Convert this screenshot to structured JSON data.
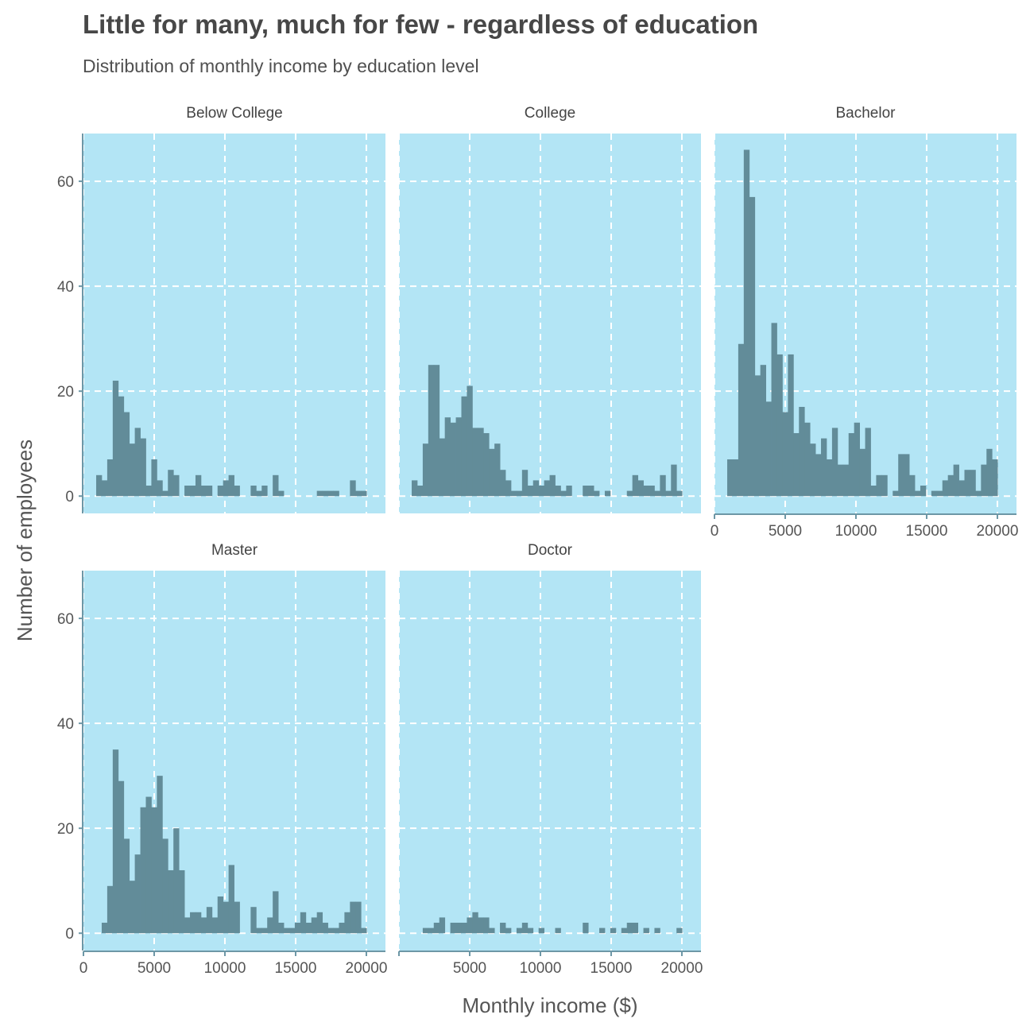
{
  "title": "Little for many, much for few - regardless of education",
  "subtitle": "Distribution of monthly income by education level",
  "colors": {
    "panel_bg": "#b3e5f5",
    "bar": "#628c99",
    "grid": "#ffffff",
    "axis": "#6d97a6"
  },
  "chart_data": {
    "type": "bar",
    "subtype": "faceted-histogram",
    "title": "Little for many, much for few - regardless of education",
    "subtitle": "Distribution of monthly income by education level",
    "xlabel": "Monthly income ($)",
    "ylabel": "Number of employees",
    "xlim": [
      0,
      21350
    ],
    "ylim": [
      -3.3,
      69.1
    ],
    "xticks": [
      0,
      5000,
      10000,
      15000,
      20000
    ],
    "xtick_labels": [
      "0",
      "5000",
      "10000",
      "15000",
      "20000"
    ],
    "yticks": [
      0,
      20,
      40,
      60
    ],
    "ytick_labels": [
      "0",
      "20",
      "40",
      "60"
    ],
    "grid": true,
    "bin_start": 900,
    "bin_width": 390,
    "facets": [
      {
        "name": "Below College",
        "values": [
          4,
          3,
          7,
          22,
          19,
          16,
          10,
          13,
          11,
          2,
          7,
          3,
          1,
          5,
          4,
          0,
          2,
          2,
          4,
          2,
          2,
          0,
          2,
          3,
          4,
          2,
          0,
          0,
          2,
          1,
          2,
          0,
          4,
          1,
          0,
          0,
          0,
          0,
          0,
          0,
          1,
          1,
          1,
          1,
          0,
          0,
          3,
          1,
          1
        ]
      },
      {
        "name": "College",
        "values": [
          3,
          2,
          10,
          25,
          25,
          11,
          15,
          14,
          15,
          19,
          21,
          13,
          13,
          12,
          9,
          10,
          5,
          3,
          1,
          1,
          5,
          2,
          3,
          2,
          3,
          4,
          2,
          1,
          2,
          0,
          0,
          2,
          2,
          1,
          0,
          1,
          0,
          0,
          0,
          1,
          4,
          3,
          2,
          2,
          1,
          4,
          1,
          6,
          1
        ]
      },
      {
        "name": "Bachelor",
        "values": [
          7,
          7,
          29,
          66,
          57,
          23,
          25,
          18,
          33,
          27,
          16,
          27,
          12,
          17,
          14,
          10,
          8,
          11,
          7,
          13,
          6,
          6,
          12,
          14,
          9,
          13,
          2,
          4,
          4,
          0,
          1,
          8,
          8,
          4,
          1,
          2,
          0,
          1,
          1,
          3,
          4,
          6,
          3,
          5,
          5,
          1,
          6,
          9,
          7
        ]
      },
      {
        "name": "Master",
        "values": [
          0,
          2,
          9,
          35,
          29,
          18,
          10,
          15,
          24,
          26,
          24,
          30,
          18,
          12,
          20,
          12,
          3,
          4,
          4,
          3,
          5,
          3,
          7,
          6,
          13,
          6,
          0,
          0,
          5,
          1,
          1,
          3,
          8,
          2,
          1,
          1,
          2,
          4,
          2,
          3,
          4,
          2,
          1,
          1,
          2,
          4,
          6,
          6,
          1
        ]
      },
      {
        "name": "Doctor",
        "values": [
          0,
          0,
          1,
          1,
          2,
          3,
          0,
          2,
          2,
          2,
          3,
          4,
          3,
          3,
          1,
          0,
          2,
          1,
          0,
          1,
          2,
          1,
          0,
          1,
          0,
          0,
          1,
          0,
          0,
          0,
          0,
          2,
          0,
          0,
          1,
          0,
          1,
          0,
          1,
          2,
          2,
          0,
          1,
          0,
          1,
          0,
          0,
          0,
          1
        ]
      }
    ]
  }
}
